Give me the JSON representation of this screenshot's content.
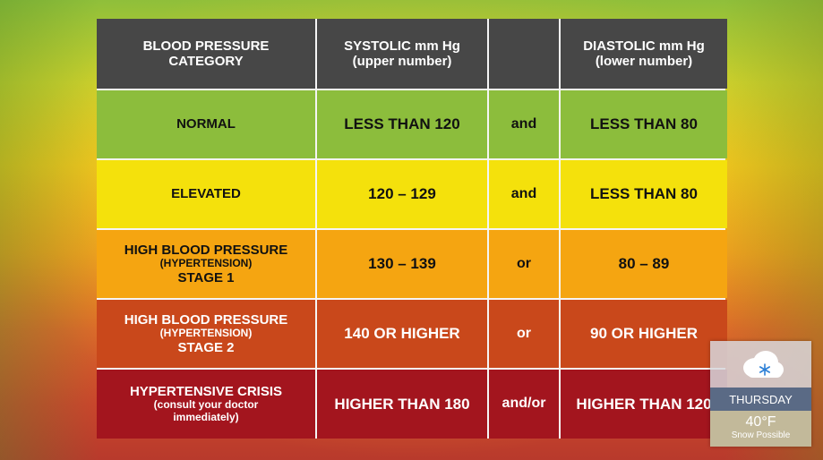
{
  "table": {
    "headers": {
      "category_line1": "BLOOD PRESSURE",
      "category_line2": "CATEGORY",
      "systolic_line1": "SYSTOLIC mm Hg",
      "systolic_line2": "(upper number)",
      "connector": "",
      "diastolic_line1": "DIASTOLIC mm Hg",
      "diastolic_line2": "(lower number)"
    },
    "rows": [
      {
        "category": "NORMAL",
        "systolic": "LESS THAN 120",
        "connector": "and",
        "diastolic": "LESS THAN 80",
        "color": "#8cbd3c"
      },
      {
        "category": "ELEVATED",
        "systolic": "120 – 129",
        "connector": "and",
        "diastolic": "LESS THAN 80",
        "color": "#f4e10c"
      },
      {
        "category_line1": "HIGH BLOOD PRESSURE",
        "category_line2": "(HYPERTENSION)",
        "category_line3": "STAGE 1",
        "systolic": "130 – 139",
        "connector": "or",
        "diastolic": "80 – 89",
        "color": "#f5a511"
      },
      {
        "category_line1": "HIGH BLOOD PRESSURE",
        "category_line2": "(HYPERTENSION)",
        "category_line3": "STAGE 2",
        "systolic": "140 OR HIGHER",
        "connector": "or",
        "diastolic": "90 OR HIGHER",
        "color": "#c9481b"
      },
      {
        "category_line1": "HYPERTENSIVE CRISIS",
        "category_line2": "(consult your doctor",
        "category_line3": "immediately)",
        "systolic": "HIGHER THAN 180",
        "connector": "and/or",
        "diastolic": "HIGHER THAN 120",
        "color": "#a3151e"
      }
    ]
  },
  "weather": {
    "icon": "snow-cloud-icon",
    "day": "THURSDAY",
    "temperature": "40°F",
    "condition": "Snow Possible"
  }
}
